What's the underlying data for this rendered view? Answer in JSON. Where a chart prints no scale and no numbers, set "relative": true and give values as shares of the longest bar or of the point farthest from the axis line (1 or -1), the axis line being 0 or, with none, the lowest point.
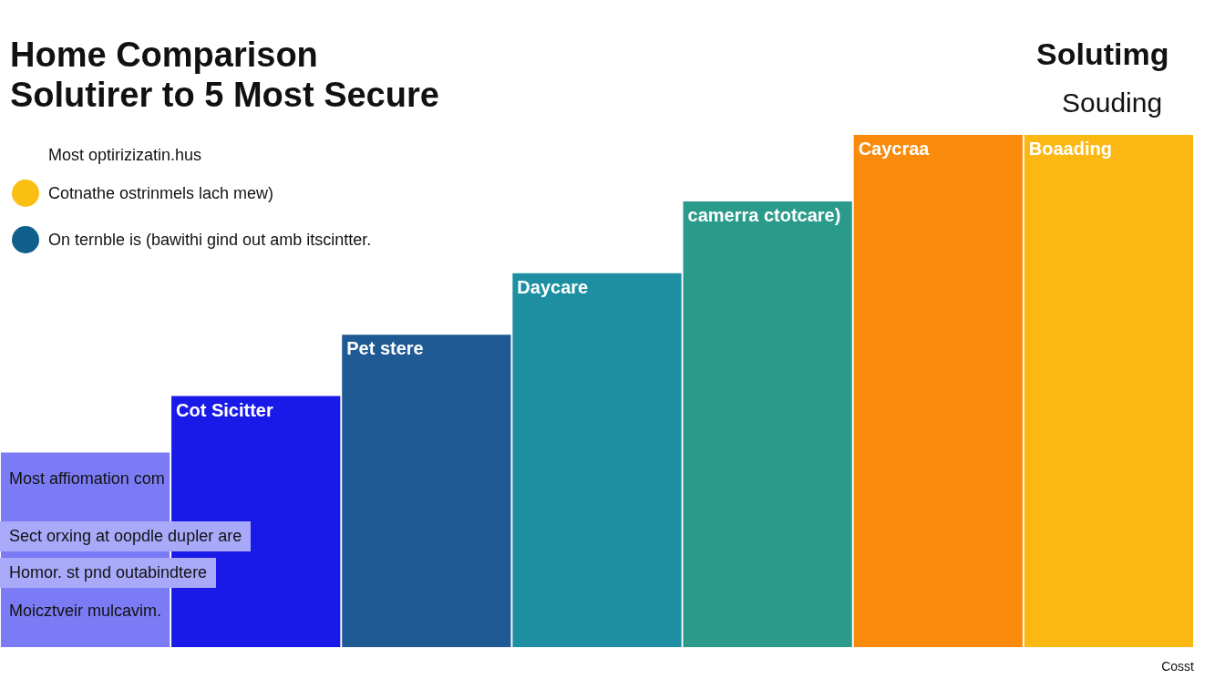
{
  "chart_data": {
    "type": "bar",
    "title": "Home Comparison",
    "subtitle": "Solutirer to 5 Most Secure",
    "xlabel": "Cosst",
    "relative": true,
    "data_labels": false,
    "categories": [
      null,
      "Cot Sicitter",
      "Pet stere",
      "Daycare",
      "camerra ctotcare)",
      "Caycraa",
      "Boaading"
    ],
    "values": [
      0.38,
      0.49,
      0.61,
      0.73,
      0.87,
      1,
      1
    ],
    "colors": [
      "#7b7bf5",
      "#1a1ae8",
      "#1f5a94",
      "#1e8fa3",
      "#2a9a8a",
      "#f98a0c",
      "#fbb812"
    ],
    "annotations": [
      "Solutimg",
      "Souding",
      "Most optirizizatin.hus",
      "Cotnathe ostrinmels lach mew)",
      "On ternble is (bawithi gind out amb itscintter.",
      "Most affiomation com",
      "Sect orxing at oopdle dupler are",
      "Homor. st pnd outabindtere",
      "Moicztveir mulcavim."
    ]
  }
}
